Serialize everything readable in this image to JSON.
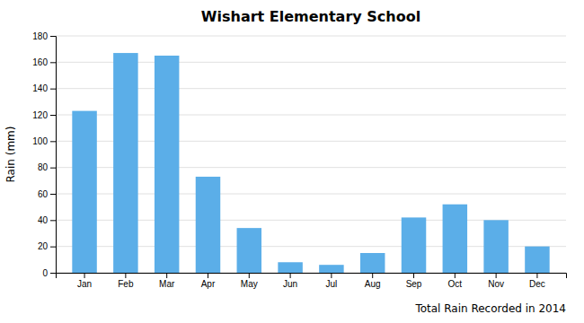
{
  "chart_data": {
    "type": "bar",
    "title": "Wishart Elementary School",
    "xlabel": "Total Rain Recorded in 2014",
    "ylabel": "Rain (mm)",
    "categories": [
      "Jan",
      "Feb",
      "Mar",
      "Apr",
      "May",
      "Jun",
      "Jul",
      "Aug",
      "Sep",
      "Oct",
      "Nov",
      "Dec"
    ],
    "values": [
      123,
      167,
      165,
      73,
      34,
      8,
      6,
      15,
      42,
      52,
      40,
      20
    ],
    "color": "#5baee8",
    "ylim": [
      0,
      180
    ],
    "yticks": [
      0,
      20,
      40,
      60,
      80,
      100,
      120,
      140,
      160,
      180
    ],
    "grid": true
  }
}
